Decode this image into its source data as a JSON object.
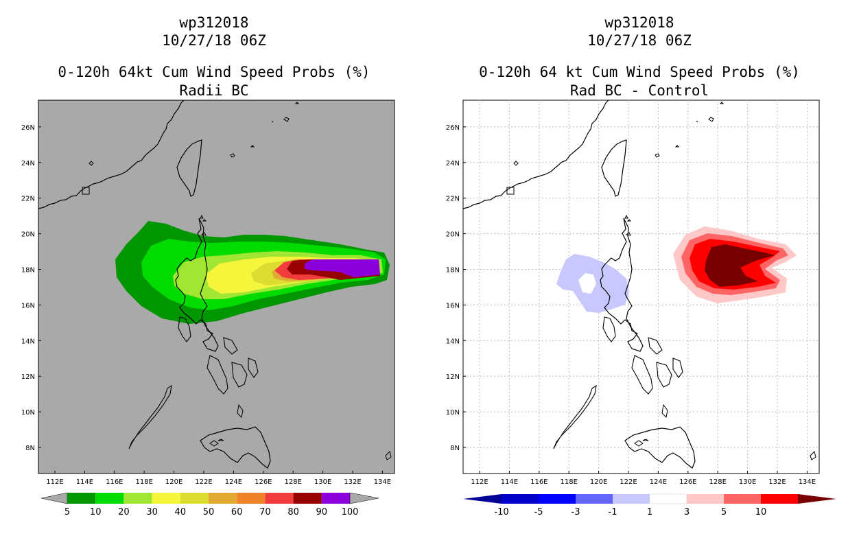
{
  "left": {
    "storm_id": "wp312018",
    "datetime": "10/27/18 06Z",
    "title": "0-120h 64kt Cum Wind Speed Probs (%)",
    "subtitle": "Radii BC",
    "background_color": "#a9a9a9",
    "lat_labels": [
      "8N",
      "10N",
      "12N",
      "14N",
      "16N",
      "18N",
      "20N",
      "22N",
      "24N",
      "26N"
    ],
    "lon_labels": [
      "112E",
      "114E",
      "116E",
      "118E",
      "120E",
      "122E",
      "124E",
      "126E",
      "128E",
      "130E",
      "132E",
      "134E"
    ],
    "colorbar": {
      "labels": [
        "5",
        "10",
        "20",
        "30",
        "40",
        "50",
        "60",
        "70",
        "80",
        "90",
        "100"
      ],
      "colors": [
        "#009600",
        "#00dc00",
        "#a0e632",
        "#f5f53c",
        "#dcdc32",
        "#e1aa32",
        "#f08228",
        "#f03c3c",
        "#960000",
        "#8c00dc"
      ]
    }
  },
  "right": {
    "storm_id": "wp312018",
    "datetime": "10/27/18 06Z",
    "title": "0-120h 64 kt Cum Wind Speed Probs (%)",
    "subtitle": "Rad BC - Control",
    "background_color": "#ffffff",
    "lat_labels": [
      "8N",
      "10N",
      "12N",
      "14N",
      "16N",
      "18N",
      "20N",
      "22N",
      "24N",
      "26N"
    ],
    "lon_labels": [
      "112E",
      "114E",
      "116E",
      "118E",
      "120E",
      "122E",
      "124E",
      "126E",
      "128E",
      "130E",
      "132E",
      "134E"
    ],
    "colorbar": {
      "labels": [
        "-10",
        "-5",
        "-3",
        "-1",
        "1",
        "3",
        "5",
        "10"
      ],
      "colors": [
        "#0000c8",
        "#0000ff",
        "#6464ff",
        "#c8c8ff",
        "#ffffff",
        "#ffc8c8",
        "#ff6464",
        "#ff0000"
      ],
      "end_colors": [
        "#000096",
        "#780000"
      ]
    }
  }
}
